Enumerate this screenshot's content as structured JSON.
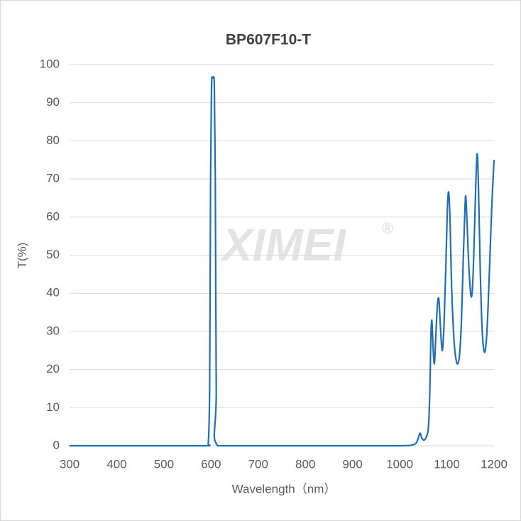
{
  "chart_data": {
    "type": "line",
    "title": "BP607F10-T",
    "watermark": "XIMEI",
    "watermark_mark": "®",
    "xlabel": "Wavelength（nm）",
    "ylabel": "T(%)",
    "xlim": [
      300,
      1200
    ],
    "xticks": [
      300,
      400,
      500,
      600,
      700,
      800,
      900,
      1000,
      1100,
      1200
    ],
    "ylim": [
      0,
      100
    ],
    "yticks": [
      0,
      10,
      20,
      30,
      40,
      50,
      60,
      70,
      80,
      90,
      100
    ],
    "grid": true,
    "series": [
      {
        "name": "BP607F10-T",
        "color": "#1f6fb5",
        "x": [
          300,
          400,
          500,
          590,
          594,
          597,
          599,
          601,
          603,
          605,
          607,
          609,
          611,
          614,
          700,
          800,
          900,
          1000,
          1030,
          1038,
          1043,
          1047,
          1052,
          1057,
          1061,
          1064,
          1066,
          1068,
          1070,
          1072,
          1074,
          1077,
          1080,
          1083,
          1086,
          1089,
          1091,
          1094,
          1098,
          1101,
          1104,
          1107,
          1110,
          1115,
          1119,
          1123,
          1127,
          1131,
          1135,
          1138,
          1140,
          1143,
          1147,
          1152,
          1156,
          1160,
          1164,
          1167,
          1171,
          1175,
          1180,
          1185,
          1190,
          1195,
          1200
        ],
        "values": [
          0,
          0,
          0,
          0,
          0.5,
          15,
          70,
          94,
          96.5,
          96.5,
          94,
          70,
          15,
          0,
          0,
          0,
          0,
          0,
          0.3,
          1.5,
          3.3,
          2,
          1.5,
          2.5,
          5,
          15,
          28,
          33,
          28,
          23,
          22,
          30,
          37,
          38.5,
          32,
          26,
          25.5,
          32,
          48,
          62,
          66.5,
          58,
          42,
          28,
          23,
          21.5,
          24,
          33,
          50,
          61,
          65.5,
          58,
          46,
          39,
          46,
          63,
          76.5,
          68,
          45,
          30,
          24.5,
          30,
          45,
          62,
          75
        ]
      }
    ]
  }
}
